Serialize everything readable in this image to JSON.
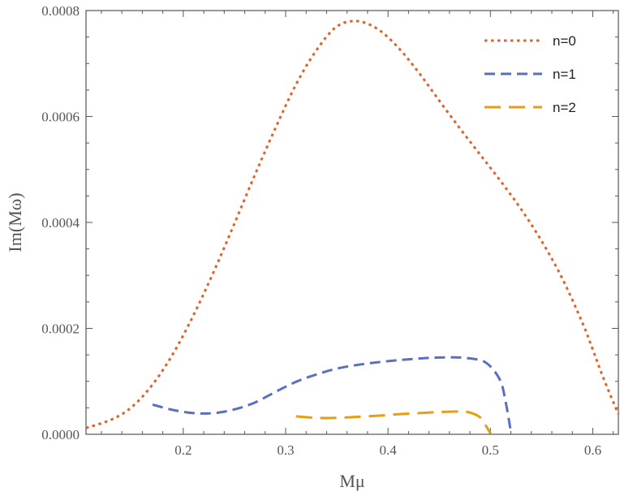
{
  "chart_data": {
    "type": "line",
    "title": "",
    "xlabel": "Mμ",
    "ylabel": "Im(Mω)",
    "xlim": [
      0.105,
      0.625
    ],
    "ylim": [
      0.0,
      0.0008
    ],
    "x_ticks": [
      {
        "value": 0.2,
        "label": "0.2"
      },
      {
        "value": 0.3,
        "label": "0.3"
      },
      {
        "value": 0.4,
        "label": "0.4"
      },
      {
        "value": 0.5,
        "label": "0.5"
      },
      {
        "value": 0.6,
        "label": "0.6"
      }
    ],
    "y_ticks": [
      {
        "value": 0.0,
        "label": "0.0000"
      },
      {
        "value": 0.0002,
        "label": "0.0002"
      },
      {
        "value": 0.0004,
        "label": "0.0004"
      },
      {
        "value": 0.0006,
        "label": "0.0006"
      },
      {
        "value": 0.0008,
        "label": "0.0008"
      }
    ],
    "grid": false,
    "legend_position": "top-right",
    "series": [
      {
        "name": "n=0",
        "color": "#E0622A",
        "dash": "dotted",
        "points": [
          [
            0.105,
            1.2e-05
          ],
          [
            0.13,
            2.8e-05
          ],
          [
            0.15,
            5.2e-05
          ],
          [
            0.17,
            9.4e-05
          ],
          [
            0.19,
            0.000152
          ],
          [
            0.21,
            0.000225
          ],
          [
            0.23,
            0.000308
          ],
          [
            0.25,
            0.000398
          ],
          [
            0.27,
            0.00049
          ],
          [
            0.29,
            0.000578
          ],
          [
            0.31,
            0.00066
          ],
          [
            0.33,
            0.000725
          ],
          [
            0.35,
            0.00077
          ],
          [
            0.37,
            0.00078
          ],
          [
            0.39,
            0.000765
          ],
          [
            0.41,
            0.00073
          ],
          [
            0.43,
            0.000683
          ],
          [
            0.45,
            0.00063
          ],
          [
            0.47,
            0.000578
          ],
          [
            0.49,
            0.000528
          ],
          [
            0.51,
            0.000478
          ],
          [
            0.53,
            0.000425
          ],
          [
            0.55,
            0.000365
          ],
          [
            0.57,
            0.000295
          ],
          [
            0.59,
            0.00021
          ],
          [
            0.6,
            0.00016
          ],
          [
            0.61,
            0.000108
          ],
          [
            0.625,
            3.8e-05
          ]
        ]
      },
      {
        "name": "n=1",
        "color": "#5A6FC0",
        "dash": "dashed",
        "points": [
          [
            0.17,
            5.6e-05
          ],
          [
            0.19,
            4.6e-05
          ],
          [
            0.21,
            4e-05
          ],
          [
            0.23,
            4e-05
          ],
          [
            0.25,
            4.7e-05
          ],
          [
            0.27,
            6e-05
          ],
          [
            0.29,
            8e-05
          ],
          [
            0.31,
            9.9e-05
          ],
          [
            0.33,
            0.000113
          ],
          [
            0.35,
            0.000124
          ],
          [
            0.37,
            0.000131
          ],
          [
            0.39,
            0.000136
          ],
          [
            0.41,
            0.00014
          ],
          [
            0.43,
            0.000143
          ],
          [
            0.45,
            0.000145
          ],
          [
            0.47,
            0.000145
          ],
          [
            0.49,
            0.00014
          ],
          [
            0.5,
            0.000128
          ],
          [
            0.51,
            0.0001
          ],
          [
            0.515,
            6e-05
          ],
          [
            0.52,
            5e-06
          ]
        ]
      },
      {
        "name": "n=2",
        "color": "#E89E10",
        "dash": "longdash",
        "points": [
          [
            0.31,
            3.4e-05
          ],
          [
            0.33,
            3.1e-05
          ],
          [
            0.35,
            3.1e-05
          ],
          [
            0.37,
            3.3e-05
          ],
          [
            0.39,
            3.5e-05
          ],
          [
            0.41,
            3.8e-05
          ],
          [
            0.43,
            4e-05
          ],
          [
            0.45,
            4.2e-05
          ],
          [
            0.47,
            4.3e-05
          ],
          [
            0.48,
            4.1e-05
          ],
          [
            0.49,
            3.2e-05
          ],
          [
            0.495,
            1.8e-05
          ],
          [
            0.5,
            2e-06
          ]
        ]
      }
    ]
  }
}
